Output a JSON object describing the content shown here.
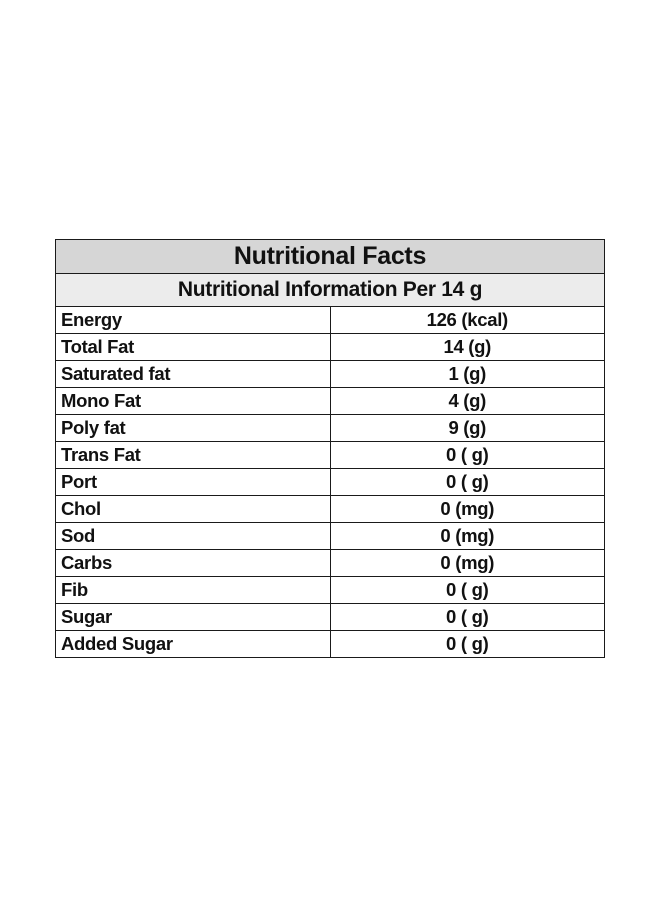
{
  "table": {
    "title": "Nutritional Facts",
    "subtitle": "Nutritional Information Per 14 g",
    "rows": [
      {
        "name": "Energy",
        "value": "126 (kcal)"
      },
      {
        "name": "Total Fat",
        "value": "14 (g)"
      },
      {
        "name": "Saturated fat",
        "value": "1 (g)"
      },
      {
        "name": "Mono Fat",
        "value": "4 (g)"
      },
      {
        "name": "Poly fat",
        "value": "9 (g)"
      },
      {
        "name": "Trans Fat",
        "value": "0 ( g)"
      },
      {
        "name": "Port",
        "value": "0 ( g)"
      },
      {
        "name": "Chol",
        "value": "0 (mg)"
      },
      {
        "name": "Sod",
        "value": "0 (mg)"
      },
      {
        "name": "Carbs",
        "value": "0 (mg)"
      },
      {
        "name": "Fib",
        "value": "0 ( g)"
      },
      {
        "name": "Sugar",
        "value": "0 ( g)"
      },
      {
        "name": "Added Sugar",
        "value": "0 ( g)"
      }
    ],
    "colors": {
      "title_background": "#d6d6d6",
      "subtitle_background": "#ececec",
      "border": "#1a1a1a"
    }
  }
}
